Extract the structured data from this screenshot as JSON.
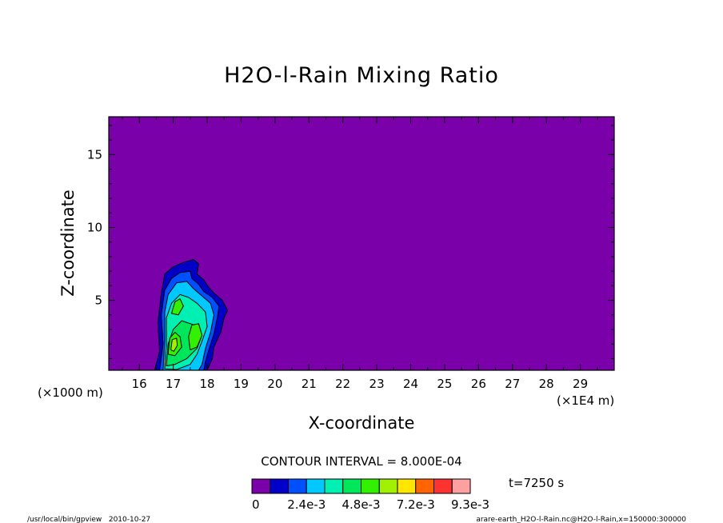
{
  "chart_data": {
    "type": "heatmap",
    "title": "H2O-l-Rain Mixing Ratio",
    "xlabel": "X-coordinate",
    "ylabel": "Z-coordinate",
    "x_unit_left": "(×1000 m)",
    "x_unit_right": "(×1E4 m)",
    "xlim": [
      15.1,
      30.0
    ],
    "ylim": [
      0.2,
      17.6
    ],
    "x_ticks": [
      16,
      17,
      18,
      19,
      20,
      21,
      22,
      23,
      24,
      25,
      26,
      27,
      28,
      29
    ],
    "y_ticks": [
      5,
      10,
      15
    ],
    "contour_interval_text": "CONTOUR INTERVAL = 8.000E-04",
    "time_text": "t=7250 s",
    "background_color": "#7a00aa",
    "colorbar": {
      "colors": [
        "#7a00aa",
        "#0000c8",
        "#0050ff",
        "#00c8ff",
        "#00f0b4",
        "#00e65a",
        "#32f000",
        "#a0f000",
        "#ffe600",
        "#ff6400",
        "#ff3232",
        "#ffa0a0"
      ],
      "labels": [
        "0",
        "2.4e-3",
        "4.8e-3",
        "7.2e-3",
        "9.3e-3"
      ]
    },
    "regions": [
      {
        "level": 1,
        "points": [
          [
            16.45,
            0.2
          ],
          [
            16.6,
            1.5
          ],
          [
            16.55,
            3.5
          ],
          [
            16.65,
            5.5
          ],
          [
            16.75,
            6.8
          ],
          [
            17.0,
            7.3
          ],
          [
            17.3,
            7.6
          ],
          [
            17.6,
            7.8
          ],
          [
            17.75,
            7.5
          ],
          [
            17.7,
            6.8
          ],
          [
            17.9,
            6.4
          ],
          [
            18.05,
            5.9
          ],
          [
            18.2,
            5.5
          ],
          [
            18.45,
            5.0
          ],
          [
            18.6,
            4.3
          ],
          [
            18.5,
            3.8
          ],
          [
            18.4,
            2.8
          ],
          [
            18.2,
            1.8
          ],
          [
            18.15,
            1.0
          ],
          [
            18.0,
            0.2
          ]
        ]
      },
      {
        "level": 2,
        "points": [
          [
            16.6,
            0.2
          ],
          [
            16.7,
            2.0
          ],
          [
            16.65,
            4.0
          ],
          [
            16.75,
            5.7
          ],
          [
            16.95,
            6.5
          ],
          [
            17.2,
            6.9
          ],
          [
            17.5,
            7.0
          ],
          [
            17.55,
            6.5
          ],
          [
            17.75,
            6.1
          ],
          [
            17.9,
            5.6
          ],
          [
            18.15,
            5.2
          ],
          [
            18.35,
            4.6
          ],
          [
            18.3,
            3.8
          ],
          [
            18.2,
            2.7
          ],
          [
            18.05,
            1.6
          ],
          [
            17.95,
            0.8
          ],
          [
            17.9,
            0.2
          ]
        ]
      },
      {
        "level": 3,
        "points": [
          [
            16.7,
            0.2
          ],
          [
            16.75,
            2.2
          ],
          [
            16.75,
            4.2
          ],
          [
            16.85,
            5.4
          ],
          [
            17.1,
            6.2
          ],
          [
            17.4,
            6.3
          ],
          [
            17.6,
            5.8
          ],
          [
            17.85,
            5.3
          ],
          [
            18.1,
            4.8
          ],
          [
            18.2,
            4.0
          ],
          [
            18.1,
            2.8
          ],
          [
            17.95,
            1.7
          ],
          [
            17.85,
            0.6
          ],
          [
            17.75,
            0.2
          ]
        ]
      },
      {
        "level": 4,
        "points": [
          [
            16.75,
            0.3
          ],
          [
            16.8,
            2.0
          ],
          [
            16.8,
            3.8
          ],
          [
            16.95,
            4.8
          ],
          [
            17.2,
            5.4
          ],
          [
            17.45,
            5.2
          ],
          [
            17.7,
            4.8
          ],
          [
            17.95,
            4.2
          ],
          [
            18.0,
            3.2
          ],
          [
            17.85,
            2.2
          ],
          [
            17.7,
            1.3
          ],
          [
            17.5,
            0.6
          ],
          [
            17.1,
            0.25
          ]
        ]
      },
      {
        "level": 5,
        "points": [
          [
            16.8,
            0.5
          ],
          [
            16.85,
            2.0
          ],
          [
            17.0,
            3.0
          ],
          [
            17.25,
            3.6
          ],
          [
            17.5,
            3.4
          ],
          [
            17.75,
            3.2
          ],
          [
            17.85,
            2.6
          ],
          [
            17.7,
            1.7
          ],
          [
            17.4,
            1.0
          ],
          [
            17.05,
            0.6
          ]
        ]
      },
      {
        "level": 6,
        "points": [
          [
            16.85,
            1.3
          ],
          [
            16.9,
            2.4
          ],
          [
            17.05,
            2.8
          ],
          [
            17.2,
            2.5
          ],
          [
            17.25,
            1.8
          ],
          [
            17.05,
            1.2
          ]
        ]
      },
      {
        "level": 6,
        "points": [
          [
            17.5,
            1.6
          ],
          [
            17.45,
            2.5
          ],
          [
            17.55,
            3.3
          ],
          [
            17.75,
            3.4
          ],
          [
            17.85,
            2.6
          ],
          [
            17.7,
            1.8
          ]
        ]
      },
      {
        "level": 6,
        "points": [
          [
            16.95,
            4.1
          ],
          [
            17.05,
            4.9
          ],
          [
            17.2,
            5.1
          ],
          [
            17.3,
            4.6
          ],
          [
            17.15,
            4.0
          ]
        ]
      },
      {
        "level": 7,
        "points": [
          [
            16.93,
            1.6
          ],
          [
            16.97,
            2.3
          ],
          [
            17.1,
            2.4
          ],
          [
            17.12,
            1.9
          ],
          [
            17.02,
            1.5
          ]
        ]
      }
    ]
  }
}
